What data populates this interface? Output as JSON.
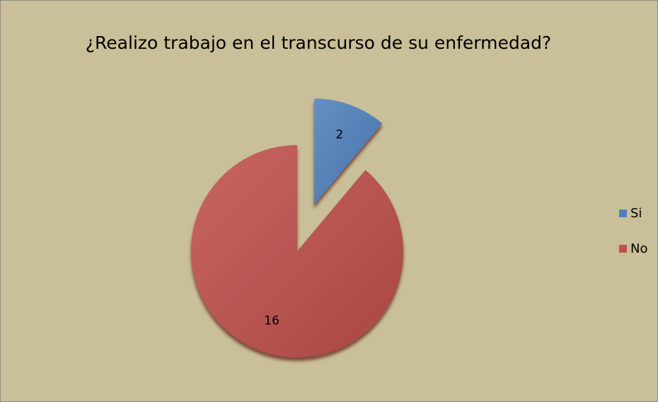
{
  "chart_data": {
    "type": "pie",
    "title": "¿Realizo trabajo  en el transcurso de su enfermedad?",
    "categories": [
      "Si",
      "No"
    ],
    "values": [
      2,
      16
    ],
    "colors": [
      "#4f81bd",
      "#c0504d"
    ],
    "legend": "right"
  }
}
